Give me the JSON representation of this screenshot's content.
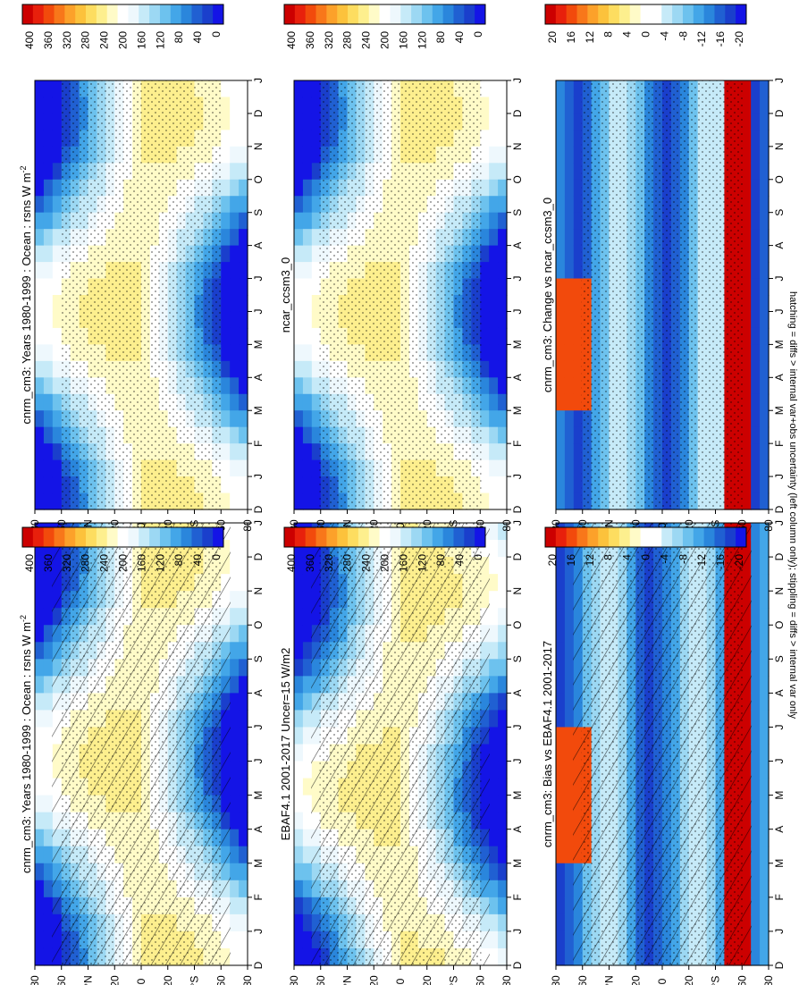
{
  "footnote": "hatching = diffs > internal var+obs uncertainty (left column only); stippling = diffs > internal var only",
  "colorbars": {
    "abs": {
      "ticks": [
        "400",
        "360",
        "320",
        "280",
        "240",
        "200",
        "160",
        "120",
        "80",
        "40",
        "0"
      ],
      "colors": [
        "#cc0000",
        "#e8200c",
        "#f24a0c",
        "#f8771a",
        "#fca12a",
        "#fcc23c",
        "#fddd60",
        "#fdef8e",
        "#fffbc8",
        "#ffffff",
        "#eef8fd",
        "#c6eaf8",
        "#9cd8f3",
        "#6dc2ee",
        "#43a6e8",
        "#2a86dc",
        "#2060d2",
        "#1a3fcc",
        "#1414e6"
      ]
    },
    "diff": {
      "ticks": [
        "20",
        "16",
        "12",
        "8",
        "4",
        "0",
        "-4",
        "-8",
        "-12",
        "-16",
        "-20"
      ],
      "colors": [
        "#cc0000",
        "#e8200c",
        "#f24a0c",
        "#f8771a",
        "#fca12a",
        "#fcc23c",
        "#fddd60",
        "#fdef8e",
        "#fffbc8",
        "#ffffff",
        "#ffffff",
        "#c6eaf8",
        "#9cd8f3",
        "#6dc2ee",
        "#43a6e8",
        "#2a86dc",
        "#2060d2",
        "#1a3fcc",
        "#1414e6"
      ]
    }
  },
  "chart_data": [
    {
      "type": "heatmap",
      "title": "cnrm_cm3: Years 1980-1999 : Ocean : rsns W m",
      "title_sup": "-2",
      "x_ticks": [
        "D",
        "J",
        "F",
        "M",
        "A",
        "M",
        "J",
        "J",
        "A",
        "S",
        "O",
        "N",
        "D",
        "J"
      ],
      "y_ticks": [
        "80",
        "60",
        "°N",
        "20",
        "0",
        "20",
        "°S",
        "60",
        "80"
      ],
      "colorbar": "abs",
      "hatching": true,
      "stippling": true
    },
    {
      "type": "heatmap",
      "title": "cnrm_cm3: Years 1980-1999 : Ocean : rsns W m",
      "title_sup": "-2",
      "x_ticks": [
        "D",
        "J",
        "F",
        "M",
        "A",
        "M",
        "J",
        "J",
        "A",
        "S",
        "O",
        "N",
        "D",
        "J"
      ],
      "y_ticks": [
        "80",
        "60",
        "°N",
        "20",
        "0",
        "20",
        "°S",
        "60",
        "80"
      ],
      "colorbar": "abs",
      "hatching": false,
      "stippling": true
    },
    {
      "type": "heatmap",
      "title": "EBAF4.1 2001-2017 Uncer=15 W/m2",
      "x_ticks": [
        "D",
        "J",
        "F",
        "M",
        "A",
        "M",
        "J",
        "J",
        "A",
        "S",
        "O",
        "N",
        "D",
        "J"
      ],
      "y_ticks": [
        "80",
        "60",
        "°N",
        "20",
        "0",
        "20",
        "°S",
        "60",
        "80"
      ],
      "colorbar": "abs",
      "hatching": true,
      "stippling": true
    },
    {
      "type": "heatmap",
      "title": "ncar_ccsm3_0",
      "x_ticks": [
        "D",
        "J",
        "F",
        "M",
        "A",
        "M",
        "J",
        "J",
        "A",
        "S",
        "O",
        "N",
        "D",
        "J"
      ],
      "y_ticks": [
        "80",
        "60",
        "°N",
        "20",
        "0",
        "20",
        "°S",
        "60",
        "80"
      ],
      "colorbar": "abs",
      "hatching": false,
      "stippling": true
    },
    {
      "type": "heatmap",
      "title": "cnrm_cm3: Bias vs EBAF4.1 2001-2017",
      "x_ticks": [
        "D",
        "J",
        "F",
        "M",
        "A",
        "M",
        "J",
        "J",
        "A",
        "S",
        "O",
        "N",
        "D",
        "J"
      ],
      "y_ticks": [
        "80",
        "60",
        "°N",
        "20",
        "0",
        "20",
        "°S",
        "60",
        "80"
      ],
      "colorbar": "diff",
      "hatching": true,
      "stippling": true
    },
    {
      "type": "heatmap",
      "title": "cnrm_cm3: Change vs ncar_ccsm3_0",
      "x_ticks": [
        "D",
        "J",
        "F",
        "M",
        "A",
        "M",
        "J",
        "J",
        "A",
        "S",
        "O",
        "N",
        "D",
        "J"
      ],
      "y_ticks": [
        "80",
        "60",
        "°N",
        "20",
        "0",
        "20",
        "°S",
        "60",
        "80"
      ],
      "colorbar": "diff",
      "hatching": false,
      "stippling": true
    }
  ]
}
